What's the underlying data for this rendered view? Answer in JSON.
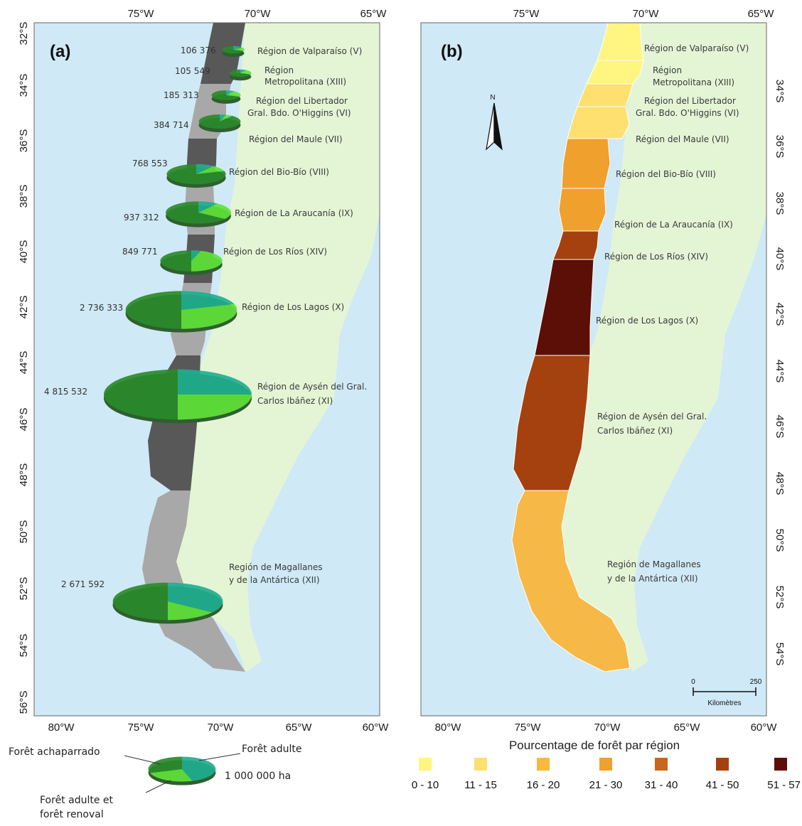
{
  "panel_a": {
    "label": "(a)",
    "top_ticks": [
      "75°W",
      "70°W",
      "65°W"
    ],
    "bottom_ticks": [
      "80°W",
      "75°W",
      "70°W",
      "65°W",
      "60°W"
    ],
    "lat_ticks": [
      "32°S",
      "34°S",
      "36°S",
      "38°S",
      "40°S",
      "42°S",
      "44°S",
      "46°S",
      "48°S",
      "50°S",
      "52°S",
      "54°S",
      "56°S"
    ],
    "regions": [
      {
        "name_line1": "Région de Valparaíso (V)",
        "name_line2": "",
        "value": "106 376",
        "shares": [
          0.15,
          0.15,
          0.7
        ]
      },
      {
        "name_line1": "Région",
        "name_line2": "Metropolitana (XIII)",
        "value": "105 549",
        "shares": [
          0.1,
          0.2,
          0.7
        ]
      },
      {
        "name_line1": "Région del Libertador",
        "name_line2": "Gral. Bdo. O'Higgins (VI)",
        "value": "185 313",
        "shares": [
          0.1,
          0.2,
          0.7
        ]
      },
      {
        "name_line1": "Région del Maule (VII)",
        "name_line2": "",
        "value": "384 714",
        "shares": [
          0.05,
          0.05,
          0.9
        ]
      },
      {
        "name_line1": "Région del Bio-Bío (VIII)",
        "name_line2": "",
        "value": "768 553",
        "shares": [
          0.1,
          0.1,
          0.8
        ]
      },
      {
        "name_line1": "Région de La Araucanía (IX)",
        "name_line2": "",
        "value": "937 312",
        "shares": [
          0.1,
          0.25,
          0.65
        ]
      },
      {
        "name_line1": "Région de Los Ríos (XIV)",
        "name_line2": "",
        "value": "849 771",
        "shares": [
          0.05,
          0.45,
          0.5
        ]
      },
      {
        "name_line1": "Région de Los Lagos (X)",
        "name_line2": "",
        "value": "2 736 333",
        "shares": [
          0.2,
          0.3,
          0.5
        ]
      },
      {
        "name_line1": "Région de Aysén del Gral.",
        "name_line2": "Carlos Ibáñez (XI)",
        "value": "4 815 532",
        "shares": [
          0.25,
          0.25,
          0.5
        ]
      },
      {
        "name_line1": "Región de Magallanes",
        "name_line2": "y de la Antártica (XII)",
        "value": "2 671 592",
        "shares": [
          0.35,
          0.15,
          0.5
        ]
      }
    ],
    "legend": {
      "cat1": "Forêt achaparrado",
      "cat2": "Forêt adulte",
      "cat3_line1": "Forêt adulte et",
      "cat3_line2": "forêt renoval",
      "size_ref": "1 000 000 ha"
    }
  },
  "panel_b": {
    "label": "(b)",
    "top_ticks": [
      "75°W",
      "70°W",
      "65°W"
    ],
    "bottom_ticks": [
      "80°W",
      "75°W",
      "70°W",
      "65°W",
      "60°W"
    ],
    "lat_ticks": [
      "34°S",
      "36°S",
      "38°S",
      "40°S",
      "42°S",
      "44°S",
      "46°S",
      "48°S",
      "50°S",
      "52°S",
      "54°S"
    ],
    "regions": [
      {
        "name_line1": "Région de Valparaíso (V)",
        "name_line2": "",
        "class": "0 - 10"
      },
      {
        "name_line1": "Région",
        "name_line2": "Metropolitana (XIII)",
        "class": "0 - 10"
      },
      {
        "name_line1": "Région del Libertador",
        "name_line2": "Gral. Bdo. O'Higgins (VI)",
        "class": "11 - 15"
      },
      {
        "name_line1": "Région del Maule (VII)",
        "name_line2": "",
        "class": "11 - 15"
      },
      {
        "name_line1": "Région del Bio-Bío (VIII)",
        "name_line2": "",
        "class": "21 - 30"
      },
      {
        "name_line1": "Région de La Araucanía (IX)",
        "name_line2": "",
        "class": "21 - 30"
      },
      {
        "name_line1": "Région de Los Ríos (XIV)",
        "name_line2": "",
        "class": "41 - 50"
      },
      {
        "name_line1": "Région de Los Lagos (X)",
        "name_line2": "",
        "class": "51 - 57"
      },
      {
        "name_line1": "Région de Aysén del Gral.",
        "name_line2": "Carlos Ibáñez (XI)",
        "class": "41 - 50"
      },
      {
        "name_line1": "Región de Magallanes",
        "name_line2": "y de la Antártica (XII)",
        "class": "16 - 20"
      }
    ],
    "north_label": "N",
    "scale": {
      "start": "0",
      "end": "250",
      "unit": "Kilomètres"
    },
    "legend_title": "Pourcentage de forêt par région",
    "classes": [
      {
        "label": "0 - 10",
        "color": "#fff580"
      },
      {
        "label": "11 - 15",
        "color": "#fde070"
      },
      {
        "label": "16 - 20",
        "color": "#f8b93c"
      },
      {
        "label": "21 - 30",
        "color": "#f0a02c"
      },
      {
        "label": "31 - 40",
        "color": "#c8661e"
      },
      {
        "label": "41 - 50",
        "color": "#a5410f"
      },
      {
        "label": "51 - 57",
        "color": "#5c0f06"
      }
    ]
  },
  "colors": {
    "ocean": "#cfe9f6",
    "land": "#e4f5d6",
    "chile_dark": "#585858",
    "chile_light": "#a8a8a8",
    "pie_teal": "#1fae90",
    "pie_lime": "#5fe23a",
    "pie_dark": "#2a8a2a"
  }
}
